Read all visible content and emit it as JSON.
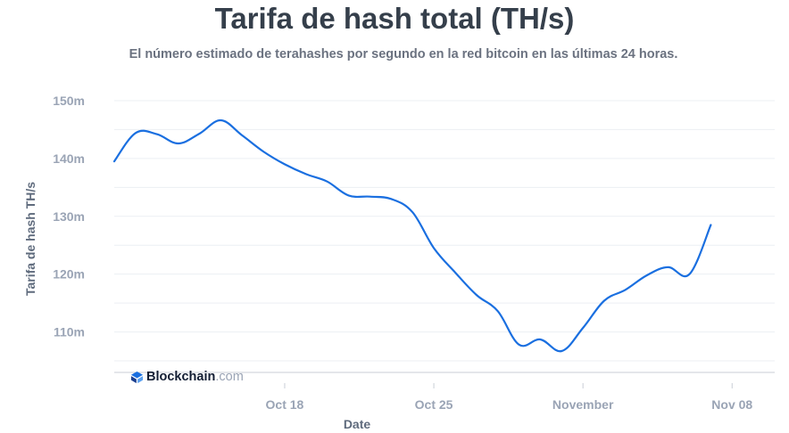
{
  "header": {
    "title": "Tarifa de hash total (TH/s)",
    "subtitle": "El número estimado de terahashes por segundo en la red bitcoin en las últimas 24 horas."
  },
  "brand": {
    "name": "Blockchain",
    "suffix": ".com",
    "icon": "blockchain-logo-icon"
  },
  "colors": {
    "line": "#1a6fe0",
    "grid": "#eceff3",
    "tick": "#9aa4b5",
    "axis_label": "#5f6b7d",
    "title": "#353f4b"
  },
  "chart_data": {
    "type": "line",
    "title": "Tarifa de hash total (TH/s)",
    "xlabel": "Date",
    "ylabel": "Tarifa de hash TH/s",
    "ylim": [
      103,
      152
    ],
    "xlim": [
      "2021-10-10",
      "2021-11-10"
    ],
    "grid": true,
    "y_ticks": [
      {
        "value": 110,
        "label": "110m"
      },
      {
        "value": 120,
        "label": "120m"
      },
      {
        "value": 130,
        "label": "130m"
      },
      {
        "value": 140,
        "label": "140m"
      },
      {
        "value": 150,
        "label": "150m"
      }
    ],
    "x_ticks": [
      {
        "date": "2021-10-18",
        "label": "Oct 18"
      },
      {
        "date": "2021-10-25",
        "label": "Oct 25"
      },
      {
        "date": "2021-11-01",
        "label": "November"
      },
      {
        "date": "2021-11-08",
        "label": "Nov 08"
      }
    ],
    "series": [
      {
        "points": [
          [
            "2021-10-10",
            139.5
          ],
          [
            "2021-10-11",
            144.4
          ],
          [
            "2021-10-12",
            144.2
          ],
          [
            "2021-10-13",
            142.6
          ],
          [
            "2021-10-14",
            144.3
          ],
          [
            "2021-10-15",
            146.6
          ],
          [
            "2021-10-16",
            144.0
          ],
          [
            "2021-10-17",
            141.2
          ],
          [
            "2021-10-18",
            139.0
          ],
          [
            "2021-10-19",
            137.3
          ],
          [
            "2021-10-20",
            136.0
          ],
          [
            "2021-10-21",
            133.6
          ],
          [
            "2021-10-22",
            133.4
          ],
          [
            "2021-10-23",
            133.0
          ],
          [
            "2021-10-24",
            130.7
          ],
          [
            "2021-10-25",
            124.5
          ],
          [
            "2021-10-26",
            120.3
          ],
          [
            "2021-10-27",
            116.4
          ],
          [
            "2021-10-28",
            113.6
          ],
          [
            "2021-10-29",
            107.8
          ],
          [
            "2021-10-30",
            108.7
          ],
          [
            "2021-10-31",
            106.7
          ],
          [
            "2021-11-01",
            110.7
          ],
          [
            "2021-11-02",
            115.4
          ],
          [
            "2021-11-03",
            117.3
          ],
          [
            "2021-11-04",
            119.8
          ],
          [
            "2021-11-05",
            121.2
          ],
          [
            "2021-11-06",
            120.0
          ],
          [
            "2021-11-07",
            128.5
          ]
        ]
      }
    ]
  }
}
